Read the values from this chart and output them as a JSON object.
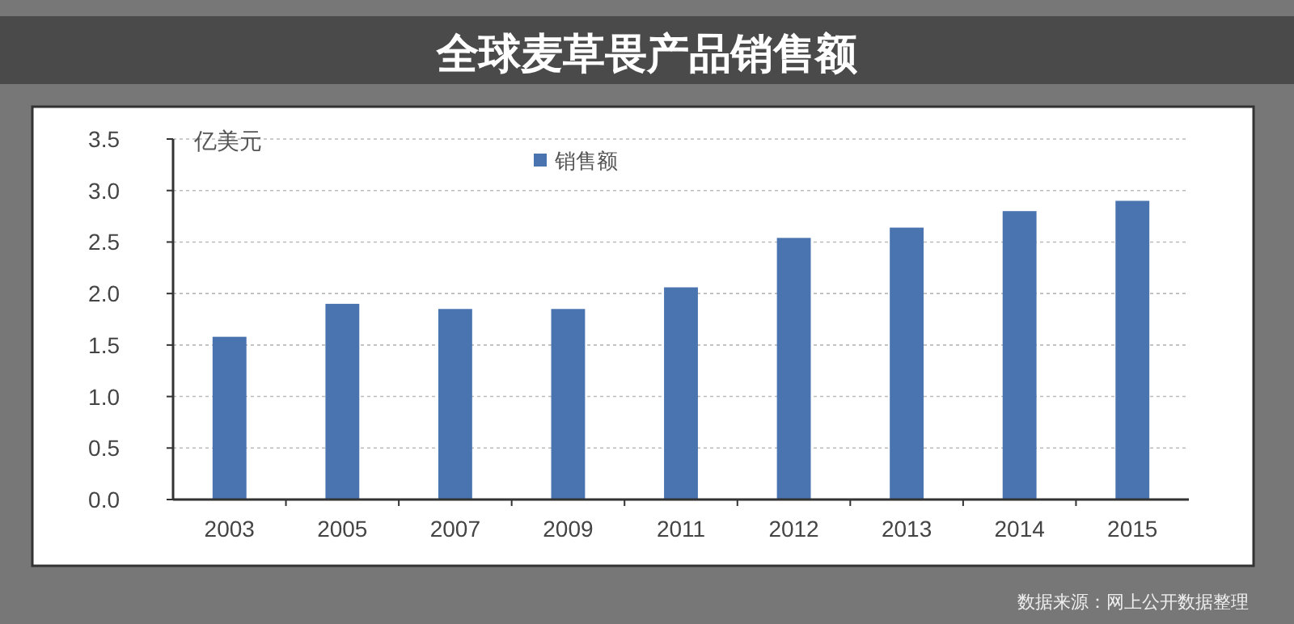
{
  "chart_data": {
    "type": "bar",
    "title": "全球麦草畏产品销售额",
    "ylabel": "亿美元",
    "categories": [
      "2003",
      "2005",
      "2007",
      "2009",
      "2011",
      "2012",
      "2013",
      "2014",
      "2015"
    ],
    "series": [
      {
        "name": "销售额",
        "color": "#4a74b0",
        "values": [
          1.58,
          1.9,
          1.85,
          1.85,
          2.06,
          2.54,
          2.64,
          2.8,
          2.9
        ]
      }
    ],
    "ylim": [
      0,
      3.5
    ],
    "yticks": [
      {
        "value": 0,
        "label": "0.0"
      },
      {
        "value": 0.5,
        "label": "0.5"
      },
      {
        "value": 1,
        "label": "1.0"
      },
      {
        "value": 1.5,
        "label": "1.5"
      },
      {
        "value": 2,
        "label": "2.0"
      },
      {
        "value": 2.5,
        "label": "2.5"
      },
      {
        "value": 3,
        "label": "3.0"
      },
      {
        "value": 3.5,
        "label": "3.5"
      }
    ],
    "grid": "y",
    "legend": "top",
    "annotations": [
      "数据来源：网上公开数据整理"
    ]
  }
}
